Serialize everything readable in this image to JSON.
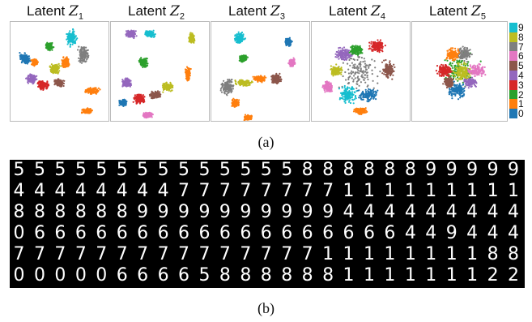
{
  "figure_a": {
    "panels": [
      {
        "label_prefix": "Latent ",
        "symbol": "Z",
        "subscript": "1"
      },
      {
        "label_prefix": "Latent ",
        "symbol": "Z",
        "subscript": "2"
      },
      {
        "label_prefix": "Latent ",
        "symbol": "Z",
        "subscript": "3"
      },
      {
        "label_prefix": "Latent ",
        "symbol": "Z",
        "subscript": "4"
      },
      {
        "label_prefix": "Latent ",
        "symbol": "Z",
        "subscript": "5"
      }
    ],
    "colorbar_ticks": [
      "9",
      "8",
      "7",
      "6",
      "5",
      "4",
      "3",
      "2",
      "1",
      "0"
    ],
    "class_colors": [
      "#1f77b4",
      "#ff7f0e",
      "#2ca02c",
      "#d62728",
      "#9467bd",
      "#8c564b",
      "#e377c2",
      "#7f7f7f",
      "#bcbd22",
      "#17becf"
    ],
    "caption": "(a)"
  },
  "figure_b": {
    "rows": [
      "5555555555555588888899999",
      "4444444477777777111111111",
      "8888889999999999444444444",
      "0666666666666666666449444",
      "7777777777777771111111188",
      "0000066665888888111111122"
    ],
    "caption": "(b)"
  }
}
